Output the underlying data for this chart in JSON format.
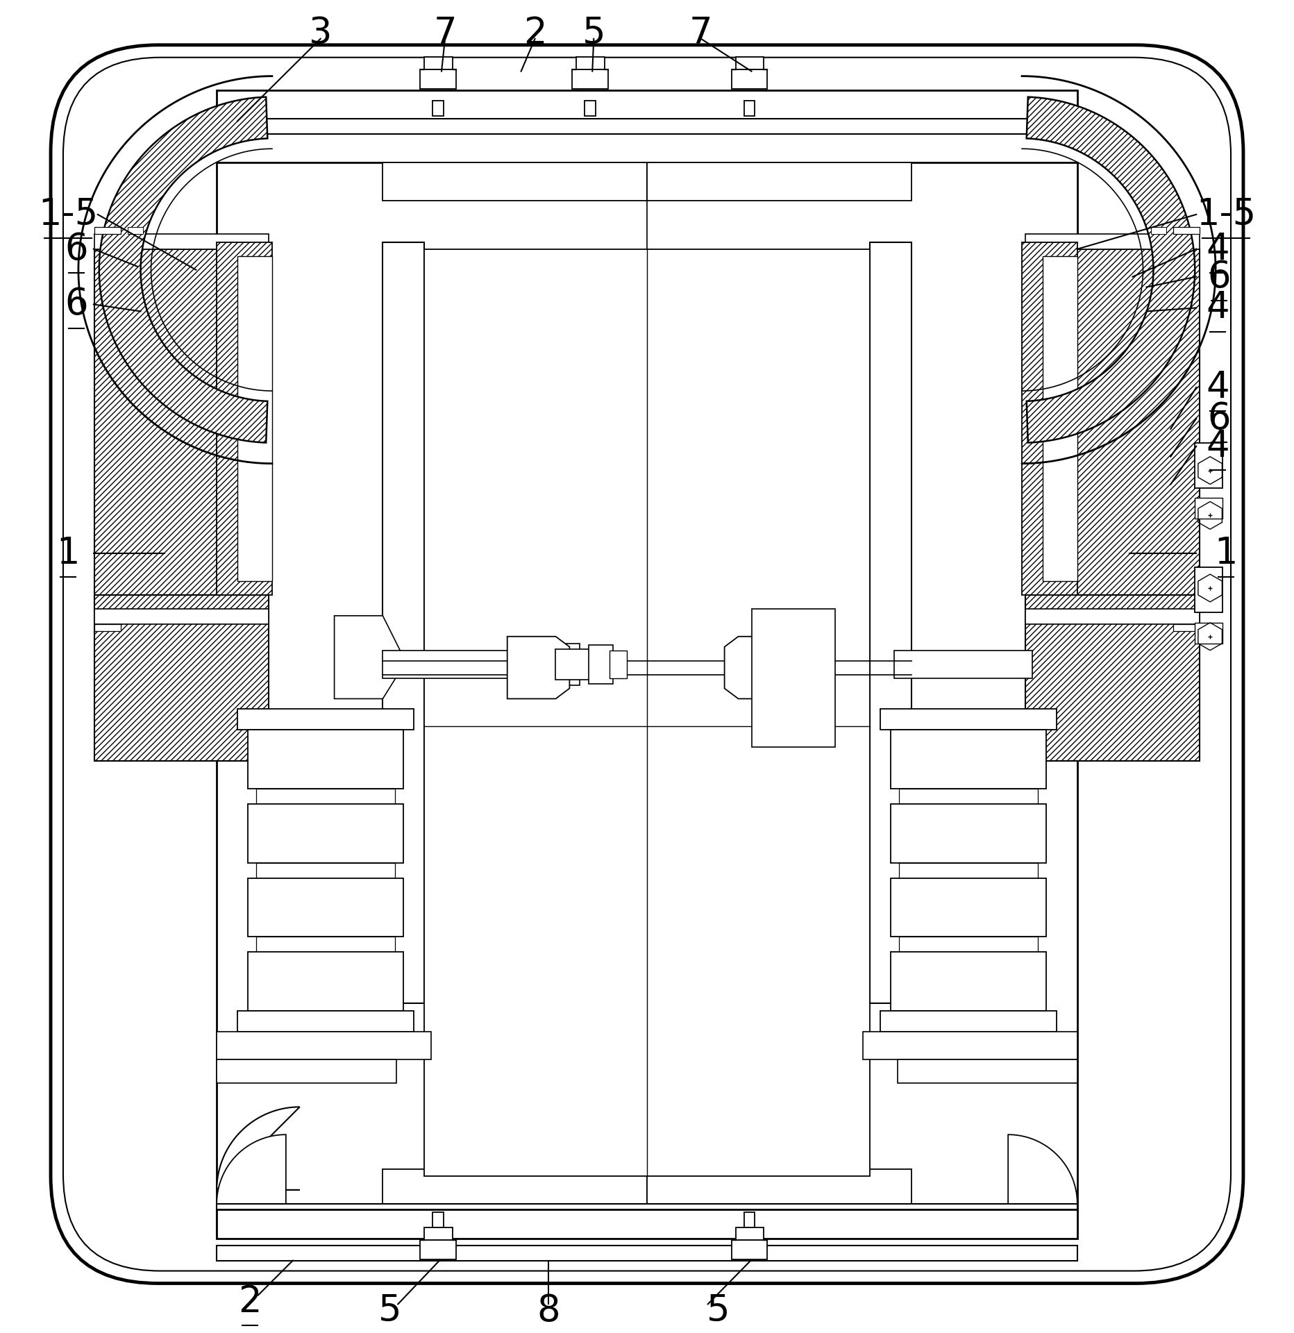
{
  "bg_color": "#ffffff",
  "figsize": [
    18.64,
    19.2
  ],
  "dpi": 100,
  "outer_rounding": 0.1,
  "inner_rounding": 0.09
}
